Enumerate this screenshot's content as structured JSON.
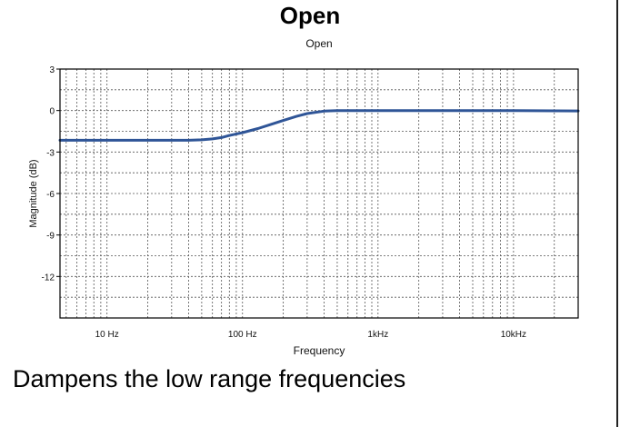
{
  "slide": {
    "title": "Open",
    "caption": "Dampens the low range frequencies"
  },
  "chart_data": {
    "type": "line",
    "title": "Open",
    "xlabel": "Frequency",
    "ylabel": "Magnitude (dB)",
    "x_scale": "log",
    "xlim": [
      4.5,
      30000
    ],
    "ylim": [
      -15,
      3
    ],
    "x_ticks": [
      {
        "value": 10,
        "label": "10 Hz"
      },
      {
        "value": 100,
        "label": "100 Hz"
      },
      {
        "value": 1000,
        "label": "1kHz"
      },
      {
        "value": 10000,
        "label": "10kHz"
      }
    ],
    "y_ticks": [
      {
        "value": 3,
        "label": "3"
      },
      {
        "value": 0,
        "label": "0"
      },
      {
        "value": -3,
        "label": "-3"
      },
      {
        "value": -6,
        "label": "-6"
      },
      {
        "value": -9,
        "label": "-9"
      },
      {
        "value": -12,
        "label": "-12"
      }
    ],
    "grid": true,
    "line_color": "#2f5597",
    "series": [
      {
        "x": [
          4.5,
          10,
          20,
          40,
          50,
          60,
          70,
          80,
          100,
          130,
          160,
          200,
          250,
          300,
          400,
          500,
          700,
          1000,
          3000,
          10000,
          30000
        ],
        "y": [
          -2.15,
          -2.15,
          -2.15,
          -2.15,
          -2.12,
          -2.05,
          -1.95,
          -1.8,
          -1.6,
          -1.3,
          -1.02,
          -0.72,
          -0.42,
          -0.22,
          -0.04,
          0.0,
          0.0,
          0.0,
          0.0,
          0.0,
          -0.03
        ]
      }
    ]
  }
}
